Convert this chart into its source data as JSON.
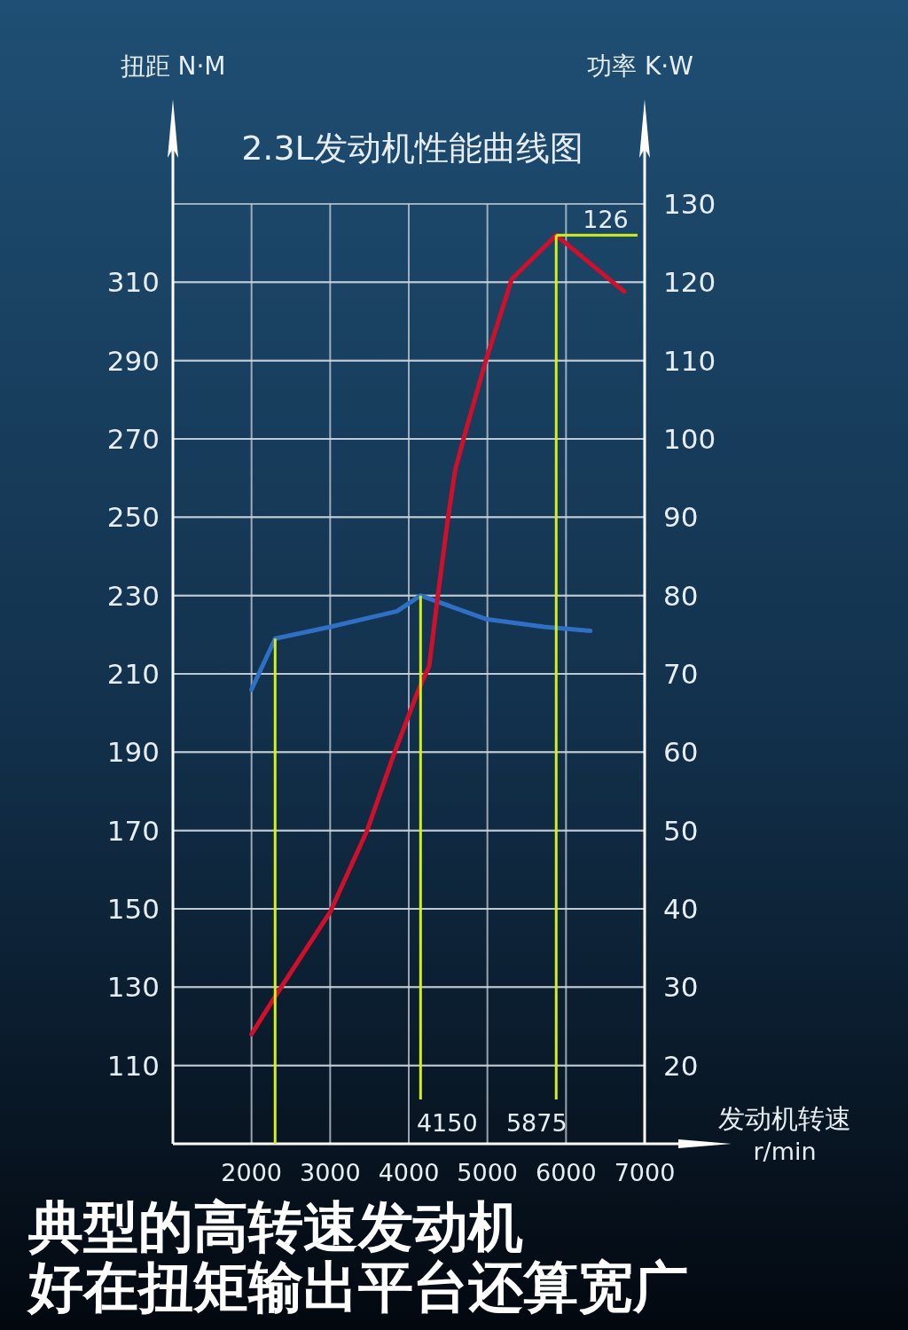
{
  "chart_data": {
    "type": "line",
    "title": "2.3L发动机性能曲线图",
    "xlabel": "发动机转速\nr/min",
    "ylabel": "扭距 N·M",
    "y2label": "功率 K·W",
    "annotations": [
      "典型的高转速发动机",
      "好在扭矩输出平台还算宽广"
    ],
    "xlim": [
      1000,
      7000
    ],
    "xticks": [
      2000,
      3000,
      4000,
      5000,
      6000,
      7000
    ],
    "ylim": [
      90,
      330
    ],
    "yticks": [
      110,
      130,
      150,
      170,
      190,
      210,
      230,
      250,
      270,
      290,
      310
    ],
    "y2lim": [
      10,
      130
    ],
    "y2ticks": [
      20,
      30,
      40,
      50,
      60,
      70,
      80,
      90,
      100,
      110,
      120,
      130
    ],
    "grid": true,
    "marker": "none",
    "line_style": "solid",
    "series": [
      {
        "color": "#2f6fc4",
        "x": [
          2000,
          2300,
          3000,
          3850,
          4150,
          4980,
          5725,
          6310
        ],
        "values": [
          206,
          219,
          222,
          226,
          230,
          224,
          222,
          221
        ]
      },
      {
        "color": "#d0102a",
        "axis": "y2",
        "x": [
          2000,
          2300,
          3000,
          3470,
          3820,
          4125,
          4260,
          4370,
          4500,
          4590,
          4710,
          4980,
          5310,
          5875,
          6740
        ],
        "values": [
          24,
          28.8,
          39.6,
          50,
          60,
          68,
          71,
          80,
          90,
          96,
          100.5,
          110,
          120.4,
          126,
          118.8
        ]
      }
    ],
    "ref_lines": [
      {
        "axis": "x",
        "value": 2300,
        "color": "#d4f01a"
      },
      {
        "axis": "x",
        "value": 4150,
        "label": "4150",
        "color": "#d4f01a"
      },
      {
        "axis": "x",
        "value": 5875,
        "label": "5875",
        "color": "#d4f01a"
      },
      {
        "axis": "y2",
        "value": 126,
        "label": "126",
        "color": "#d4f01a"
      }
    ]
  }
}
